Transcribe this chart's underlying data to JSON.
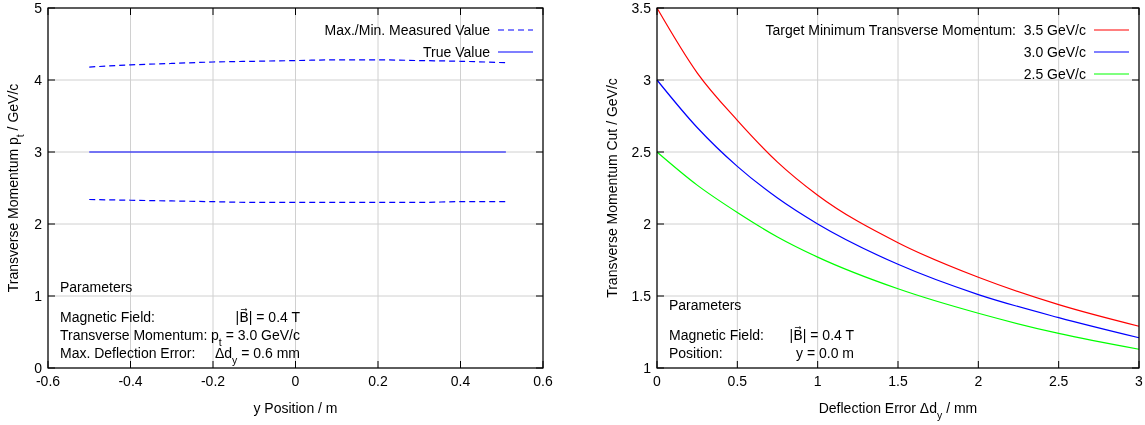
{
  "chart_data": [
    {
      "type": "line",
      "xlabel": "y Position / m",
      "ylabel": "Transverse Momentum p$_{t}$ / GeV/c",
      "xlim": [
        -0.6,
        0.6
      ],
      "xticks": [
        -0.6,
        -0.4,
        -0.2,
        0,
        0.2,
        0.4,
        0.6
      ],
      "ylim": [
        0,
        5
      ],
      "yticks": [
        0,
        1,
        2,
        3,
        4,
        5
      ],
      "grid": true,
      "legend": "top right",
      "series": [
        {
          "name": "Max./Min. Measured Value",
          "color": "#0000ff",
          "line_style": "dashed",
          "x": [
            -0.5,
            -0.4,
            -0.3,
            -0.2,
            -0.1,
            0,
            0.1,
            0.2,
            0.3,
            0.4,
            0.51
          ],
          "values": [
            4.18,
            4.21,
            4.23,
            4.25,
            4.26,
            4.27,
            4.28,
            4.28,
            4.27,
            4.26,
            4.24
          ]
        },
        {
          "name": "True Value",
          "color": "#0000ff",
          "line_style": "solid",
          "x": [
            -0.5,
            0.51
          ],
          "values": [
            3.0,
            3.0
          ]
        },
        {
          "color": "#0000ff",
          "line_style": "dashed",
          "x": [
            -0.5,
            -0.4,
            -0.3,
            -0.2,
            -0.1,
            0,
            0.1,
            0.2,
            0.3,
            0.4,
            0.51
          ],
          "values": [
            2.34,
            2.33,
            2.32,
            2.31,
            2.3,
            2.3,
            2.3,
            2.3,
            2.3,
            2.31,
            2.31
          ]
        }
      ],
      "annotations": [
        "Parameters",
        "Magnetic Field:",
        "|B⃗| = 0.4 T",
        "Transverse Momentum:",
        "p$_{t}$ = 3.0 GeV/c",
        "Max. Deflection Error:",
        "Δd$_{y}$ = 0.6 mm"
      ]
    },
    {
      "type": "line",
      "xlabel": "Deflection Error Δd$_{y}$ / mm",
      "ylabel": "Transverse Momentum Cut / GeV/c",
      "xlim": [
        0,
        3
      ],
      "xticks": [
        0,
        0.5,
        1,
        1.5,
        2,
        2.5,
        3
      ],
      "ylim": [
        1,
        3.5
      ],
      "yticks": [
        1,
        1.5,
        2,
        2.5,
        3,
        3.5
      ],
      "grid": true,
      "legend": "top right",
      "legend_title": "Target Minimum Transverse Momentum:",
      "series": [
        {
          "name": "3.5 GeV/c",
          "color": "#ff0000",
          "x": [
            0,
            0.25,
            0.5,
            0.75,
            1,
            1.5,
            2,
            2.5,
            3
          ],
          "values": [
            3.5,
            3.05,
            2.72,
            2.43,
            2.2,
            1.87,
            1.63,
            1.44,
            1.29
          ]
        },
        {
          "name": "3.0 GeV/c",
          "color": "#0000ff",
          "x": [
            0,
            0.25,
            0.5,
            0.75,
            1,
            1.5,
            2,
            2.5,
            3
          ],
          "values": [
            3.0,
            2.67,
            2.4,
            2.18,
            2.0,
            1.72,
            1.51,
            1.35,
            1.21
          ]
        },
        {
          "name": "2.5 GeV/c",
          "color": "#00ff00",
          "x": [
            0,
            0.25,
            0.5,
            0.75,
            1,
            1.5,
            2,
            2.5,
            3
          ],
          "values": [
            2.5,
            2.27,
            2.08,
            1.91,
            1.77,
            1.55,
            1.38,
            1.24,
            1.13
          ]
        }
      ],
      "annotations": [
        "Parameters",
        "Magnetic Field:",
        "|B⃗| = 0.4 T",
        "Position:",
        "y = 0.0 m"
      ]
    }
  ]
}
